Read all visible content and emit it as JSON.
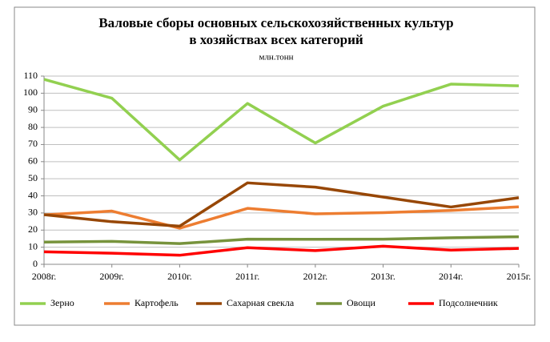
{
  "chart_data": {
    "type": "line",
    "title": [
      "Валовые сборы основных сельскохозяйственных культур",
      "в хозяйствах всех категорий"
    ],
    "subtitle": "млн.тонн",
    "categories": [
      "2008г.",
      "2009г.",
      "2010г.",
      "2011г.",
      "2012г.",
      "2013г.",
      "2014г.",
      "2015г."
    ],
    "series": [
      {
        "name": "Зерно",
        "color": "#92d050",
        "values": [
          108.1,
          97.1,
          61.0,
          94.0,
          70.9,
          92.4,
          105.3,
          104.3
        ]
      },
      {
        "name": "Картофель",
        "color": "#ed7d31",
        "values": [
          28.9,
          31.1,
          21.1,
          32.7,
          29.5,
          30.2,
          31.5,
          33.6
        ]
      },
      {
        "name": "Сахарная свекла",
        "color": "#974706",
        "values": [
          29.0,
          24.9,
          22.3,
          47.6,
          45.1,
          39.3,
          33.5,
          38.9
        ]
      },
      {
        "name": "Овощи",
        "color": "#77933c",
        "values": [
          13.0,
          13.4,
          12.1,
          14.7,
          14.6,
          14.7,
          15.5,
          16.1
        ]
      },
      {
        "name": "Подсолнечник",
        "color": "#ff0000",
        "values": [
          7.3,
          6.5,
          5.3,
          9.7,
          8.0,
          10.6,
          8.3,
          9.3
        ]
      }
    ],
    "ylim": [
      0,
      110
    ],
    "yticks": [
      0,
      10,
      20,
      30,
      40,
      50,
      60,
      70,
      80,
      90,
      100,
      110
    ],
    "grid": true,
    "legend": "bottom"
  }
}
